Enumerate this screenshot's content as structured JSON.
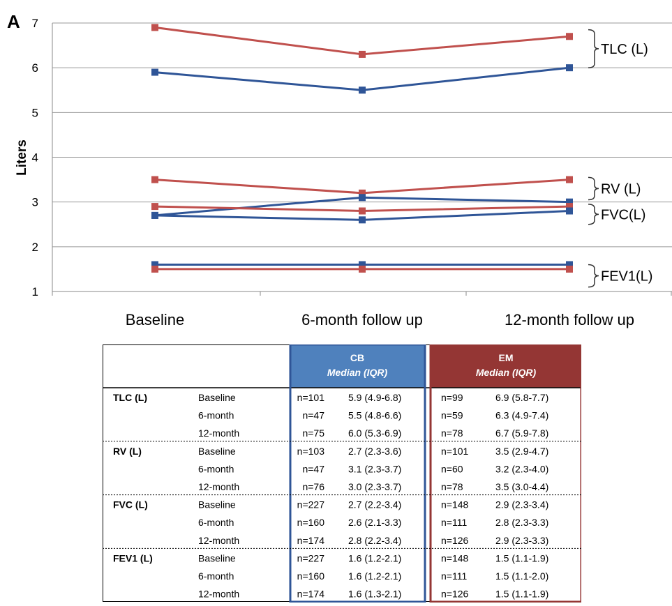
{
  "panel_label": "A",
  "chart_data": {
    "type": "line",
    "ylabel": "Liters",
    "xlabel": "",
    "ylim": [
      1,
      7
    ],
    "yticks": [
      1,
      2,
      3,
      4,
      5,
      6,
      7
    ],
    "categories": [
      "Baseline",
      "6-month follow up",
      "12-month follow up"
    ],
    "colors": {
      "CB": "#2f5597",
      "EM": "#c0504d"
    },
    "series": [
      {
        "group": "TLC (L)",
        "arm": "EM",
        "values": [
          6.9,
          6.3,
          6.7
        ]
      },
      {
        "group": "TLC (L)",
        "arm": "CB",
        "values": [
          5.9,
          5.5,
          6.0
        ]
      },
      {
        "group": "RV (L)",
        "arm": "EM",
        "values": [
          3.5,
          3.2,
          3.5
        ]
      },
      {
        "group": "RV (L)",
        "arm": "CB",
        "values": [
          2.7,
          3.1,
          3.0
        ]
      },
      {
        "group": "FVC(L)",
        "arm": "EM",
        "values": [
          2.9,
          2.8,
          2.9
        ]
      },
      {
        "group": "FVC(L)",
        "arm": "CB",
        "values": [
          2.7,
          2.6,
          2.8
        ]
      },
      {
        "group": "FEV1(L)",
        "arm": "CB",
        "values": [
          1.6,
          1.6,
          1.6
        ]
      },
      {
        "group": "FEV1(L)",
        "arm": "EM",
        "values": [
          1.5,
          1.5,
          1.5
        ]
      }
    ],
    "brackets": [
      {
        "label": "TLC (L)",
        "range": [
          6.0,
          6.85
        ]
      },
      {
        "label": "RV (L)",
        "range": [
          3.05,
          3.55
        ]
      },
      {
        "label": "FVC(L)",
        "range": [
          2.5,
          2.95
        ]
      },
      {
        "label": "FEV1(L)",
        "range": [
          1.1,
          1.6
        ]
      }
    ],
    "grid": true
  },
  "table": {
    "cb_header": "CB",
    "em_header": "EM",
    "sub_header": "Median (IQR)",
    "groups": [
      {
        "name": "TLC (L)",
        "rows": [
          {
            "time": "Baseline",
            "cb_n": "n=101",
            "cb_v": "5.9 (4.9-6.8)",
            "em_n": "n=99",
            "em_v": "6.9 (5.8-7.7)"
          },
          {
            "time": "6-month",
            "cb_n": "n=47",
            "cb_v": "5.5 (4.8-6.6)",
            "em_n": "n=59",
            "em_v": "6.3 (4.9-7.4)"
          },
          {
            "time": "12-month",
            "cb_n": "n=75",
            "cb_v": "6.0 (5.3-6.9)",
            "em_n": "n=78",
            "em_v": "6.7 (5.9-7.8)"
          }
        ]
      },
      {
        "name": "RV (L)",
        "rows": [
          {
            "time": "Baseline",
            "cb_n": "n=103",
            "cb_v": "2.7 (2.3-3.6)",
            "em_n": "n=101",
            "em_v": "3.5 (2.9-4.7)"
          },
          {
            "time": "6-month",
            "cb_n": "n=47",
            "cb_v": "3.1 (2.3-3.7)",
            "em_n": "n=60",
            "em_v": "3.2 (2.3-4.0)"
          },
          {
            "time": "12-month",
            "cb_n": "n=76",
            "cb_v": "3.0 (2.3-3.7)",
            "em_n": "n=78",
            "em_v": "3.5 (3.0-4.4)"
          }
        ]
      },
      {
        "name": "FVC (L)",
        "rows": [
          {
            "time": "Baseline",
            "cb_n": "n=227",
            "cb_v": "2.7 (2.2-3.4)",
            "em_n": "n=148",
            "em_v": "2.9 (2.3-3.4)"
          },
          {
            "time": "6-month",
            "cb_n": "n=160",
            "cb_v": "2.6 (2.1-3.3)",
            "em_n": "n=111",
            "em_v": "2.8 (2.3-3.3)"
          },
          {
            "time": "12-month",
            "cb_n": "n=174",
            "cb_v": "2.8 (2.2-3.4)",
            "em_n": "n=126",
            "em_v": "2.9 (2.3-3.3)"
          }
        ]
      },
      {
        "name": "FEV1 (L)",
        "rows": [
          {
            "time": "Baseline",
            "cb_n": "n=227",
            "cb_v": "1.6 (1.2-2.1)",
            "em_n": "n=148",
            "em_v": "1.5 (1.1-1.9)"
          },
          {
            "time": "6-month",
            "cb_n": "n=160",
            "cb_v": "1.6 (1.2-2.1)",
            "em_n": "n=111",
            "em_v": "1.5 (1.1-2.0)"
          },
          {
            "time": "12-month",
            "cb_n": "n=174",
            "cb_v": "1.6 (1.3-2.1)",
            "em_n": "n=126",
            "em_v": "1.5 (1.1-1.9)"
          }
        ]
      }
    ]
  }
}
